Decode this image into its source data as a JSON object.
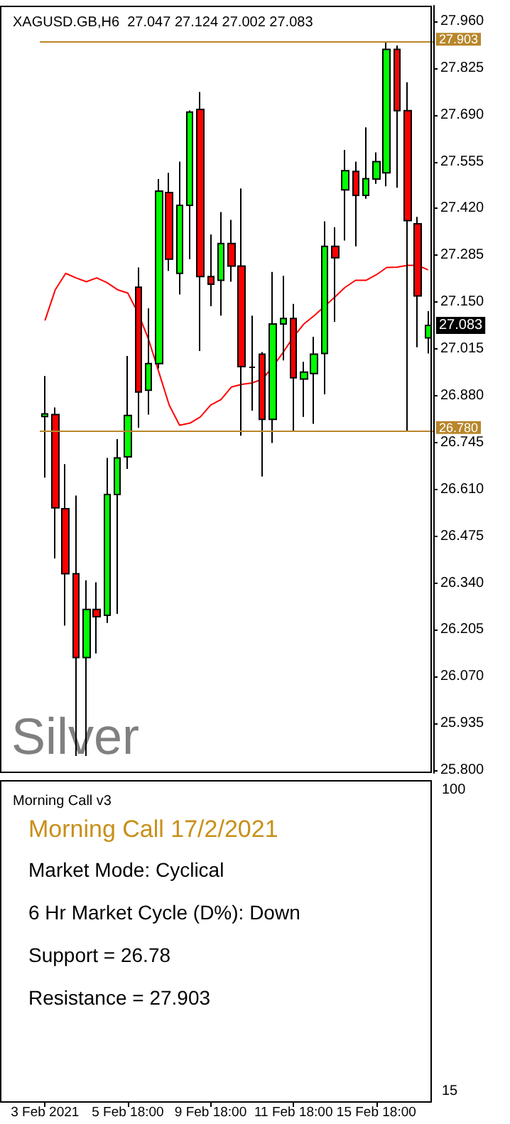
{
  "chart_data": [
    {
      "type": "candlestick",
      "title": "XAGUSD.GB,H6  27.047 27.124 27.002 27.083",
      "categories": [
        null,
        null,
        null,
        null,
        null,
        null,
        null,
        null,
        null,
        null,
        null,
        null,
        null,
        null,
        null,
        null,
        null,
        null,
        null,
        null,
        null,
        null,
        null,
        null,
        null,
        null,
        null,
        null,
        null,
        null,
        null,
        null,
        null,
        null,
        null,
        null,
        null,
        null
      ],
      "ohlc": [
        [
          26.82,
          26.937,
          26.644,
          26.828
        ],
        [
          26.826,
          26.846,
          26.411,
          26.557
        ],
        [
          26.554,
          26.683,
          26.217,
          26.367
        ],
        [
          26.367,
          26.592,
          25.841,
          26.125
        ],
        [
          26.125,
          26.348,
          25.841,
          26.264
        ],
        [
          26.264,
          26.342,
          26.137,
          26.243
        ],
        [
          26.247,
          26.701,
          26.225,
          26.595
        ],
        [
          26.595,
          26.755,
          26.251,
          26.701
        ],
        [
          26.704,
          26.995,
          26.669,
          26.823
        ],
        [
          27.193,
          27.25,
          26.788,
          26.891
        ],
        [
          26.896,
          27.132,
          26.826,
          26.973
        ],
        [
          26.973,
          27.505,
          26.959,
          27.47
        ],
        [
          27.466,
          27.523,
          27.24,
          27.274
        ],
        [
          27.233,
          27.555,
          27.172,
          27.429
        ],
        [
          27.429,
          27.703,
          27.274,
          27.698
        ],
        [
          27.706,
          27.756,
          27.009,
          27.224
        ],
        [
          27.224,
          27.345,
          27.138,
          27.202
        ],
        [
          27.213,
          27.41,
          27.111,
          27.319
        ],
        [
          27.319,
          27.387,
          27.209,
          27.254
        ],
        [
          27.254,
          27.478,
          26.765,
          26.964
        ],
        [
          26.962,
          27.111,
          26.837,
          26.962
        ],
        [
          27.0,
          27.006,
          26.647,
          26.812
        ],
        [
          26.812,
          27.237,
          26.744,
          27.087
        ],
        [
          27.087,
          27.226,
          26.982,
          27.103
        ],
        [
          27.103,
          27.145,
          26.778,
          26.932
        ],
        [
          26.928,
          26.978,
          26.819,
          26.948
        ],
        [
          26.944,
          27.05,
          26.799,
          27.0
        ],
        [
          27.002,
          27.383,
          26.884,
          27.311
        ],
        [
          27.311,
          27.366,
          27.093,
          27.278
        ],
        [
          27.474,
          27.589,
          27.328,
          27.529
        ],
        [
          27.527,
          27.555,
          27.311,
          27.458
        ],
        [
          27.458,
          27.654,
          27.448,
          27.506
        ],
        [
          27.505,
          27.582,
          27.491,
          27.555
        ],
        [
          27.523,
          27.899,
          27.484,
          27.879
        ],
        [
          27.879,
          27.89,
          27.48,
          27.702
        ],
        [
          27.702,
          27.784,
          26.778,
          27.385
        ],
        [
          27.376,
          27.396,
          27.02,
          27.168
        ],
        [
          27.047,
          27.124,
          27.002,
          27.083
        ]
      ],
      "colors": [
        "#00ff00",
        "#ff0000",
        "#ff0000",
        "#ff0000",
        "#00ff00",
        "#ff0000",
        "#00ff00",
        "#00ff00",
        "#00ff00",
        "#ff0000",
        "#00ff00",
        "#00ff00",
        "#ff0000",
        "#00ff00",
        "#00ff00",
        "#ff0000",
        "#ff0000",
        "#00ff00",
        "#ff0000",
        "#ff0000",
        "#000000",
        "#ff0000",
        "#00ff00",
        "#00ff00",
        "#ff0000",
        "#00ff00",
        "#00ff00",
        "#00ff00",
        "#ff0000",
        "#00ff00",
        "#ff0000",
        "#00ff00",
        "#00ff00",
        "#00ff00",
        "#ff0000",
        "#ff0000",
        "#ff0000",
        "#00ff00"
      ],
      "series": [
        {
          "type": "line",
          "color": "#ff0000",
          "values": [
            27.097,
            27.186,
            27.233,
            27.22,
            27.209,
            27.22,
            27.206,
            27.186,
            27.176,
            27.118,
            27.043,
            26.948,
            26.853,
            26.795,
            26.801,
            26.819,
            26.853,
            26.869,
            26.905,
            26.913,
            26.917,
            26.928,
            26.964,
            27.005,
            27.05,
            27.087,
            27.111,
            27.138,
            27.165,
            27.193,
            27.213,
            27.213,
            27.229,
            27.25,
            27.251,
            27.256,
            27.256,
            27.243
          ]
        }
      ],
      "ylim": [
        25.792,
        28.005
      ],
      "yticks": [
        {
          "value": 25.8,
          "label": "25.800"
        },
        {
          "value": 25.935,
          "label": "25.935"
        },
        {
          "value": 26.07,
          "label": "26.070"
        },
        {
          "value": 26.205,
          "label": "26.205"
        },
        {
          "value": 26.34,
          "label": "26.340"
        },
        {
          "value": 26.475,
          "label": "26.475"
        },
        {
          "value": 26.61,
          "label": "26.610"
        },
        {
          "value": 26.745,
          "label": "26.745"
        },
        {
          "value": 26.88,
          "label": "26.880"
        },
        {
          "value": 27.015,
          "label": "27.015"
        },
        {
          "value": 27.15,
          "label": "27.150"
        },
        {
          "value": 27.285,
          "label": "27.285"
        },
        {
          "value": 27.42,
          "label": "27.420"
        },
        {
          "value": 27.555,
          "label": "27.555"
        },
        {
          "value": 27.69,
          "label": "27.690"
        },
        {
          "value": 27.825,
          "label": "27.825"
        },
        {
          "value": 27.96,
          "label": "27.960"
        }
      ],
      "ref_lines": [
        {
          "axis": "y",
          "value": 27.903,
          "label": "27.903",
          "color": "#b8862b"
        },
        {
          "axis": "y",
          "value": 26.78,
          "label": "26.780",
          "color": "#b8862b"
        }
      ],
      "annotations": [
        "Silver",
        {
          "text": "27.083",
          "y": 27.083
        }
      ],
      "grid": false,
      "tick_labels": "y"
    },
    {
      "type": "other",
      "title": "Morning Call v3",
      "subtitle": "Morning Call 17/2/2021",
      "categories": [
        "3 Feb 2021",
        null,
        null,
        null,
        null,
        null,
        null,
        null,
        "5 Feb 18:00",
        null,
        null,
        null,
        null,
        null,
        null,
        null,
        "9 Feb 18:00",
        null,
        null,
        null,
        null,
        null,
        null,
        null,
        "11 Feb 18:00",
        null,
        null,
        null,
        null,
        null,
        null,
        null,
        "15 Feb 18:00",
        null,
        null,
        null,
        null,
        null
      ],
      "annotations": [
        "Market Mode: Cyclical",
        "6 Hr Market Cycle (D%): Down",
        "Support = 26.78",
        "Resistance = 27.903",
        "100",
        "15"
      ]
    }
  ]
}
